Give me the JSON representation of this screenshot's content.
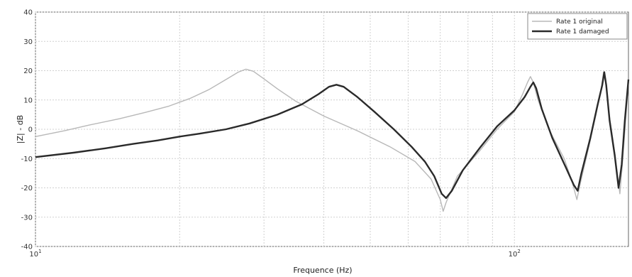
{
  "chart_data": {
    "type": "line",
    "title": "",
    "xlabel": "Frequence (Hz)",
    "ylabel": "|Z| - dB",
    "xscale": "log",
    "xlim": [
      10,
      173
    ],
    "ylim": [
      -40,
      40
    ],
    "grid": true,
    "legend_position": "top-right",
    "x_tick_labels": [
      "10^1",
      "10^2"
    ],
    "y_ticks": [
      -40,
      -30,
      -20,
      -10,
      0,
      10,
      20,
      30,
      40
    ],
    "series": [
      {
        "name": "Rate 1 original",
        "color": "#b8b8b8",
        "points": [
          [
            10,
            -2.5
          ],
          [
            11.5,
            -0.5
          ],
          [
            13,
            1.5
          ],
          [
            15,
            3.6
          ],
          [
            17,
            5.8
          ],
          [
            19,
            7.9
          ],
          [
            21,
            10.5
          ],
          [
            23,
            13.5
          ],
          [
            25,
            17
          ],
          [
            26.5,
            19.5
          ],
          [
            27.5,
            20.5
          ],
          [
            28.5,
            19.8
          ],
          [
            30,
            17.2
          ],
          [
            32,
            13.8
          ],
          [
            35,
            9.5
          ],
          [
            40,
            4.5
          ],
          [
            47,
            -0.5
          ],
          [
            55,
            -6
          ],
          [
            62,
            -11
          ],
          [
            67,
            -17
          ],
          [
            70,
            -24
          ],
          [
            71,
            -28
          ],
          [
            72,
            -25
          ],
          [
            76,
            -16
          ],
          [
            84,
            -8
          ],
          [
            92,
            0
          ],
          [
            100,
            6
          ],
          [
            104,
            12
          ],
          [
            106.5,
            16
          ],
          [
            108,
            18
          ],
          [
            109.5,
            16
          ],
          [
            112,
            10
          ],
          [
            118,
            0
          ],
          [
            127,
            -10
          ],
          [
            132,
            -18
          ],
          [
            135,
            -24
          ],
          [
            137,
            -19
          ],
          [
            143,
            -6
          ],
          [
            148,
            5
          ],
          [
            151.5,
            13
          ],
          [
            153.5,
            19.5
          ],
          [
            155,
            16
          ],
          [
            158,
            4
          ],
          [
            162,
            -8
          ],
          [
            166,
            -22
          ],
          [
            168,
            -12
          ],
          [
            171,
            5
          ],
          [
            173,
            17
          ]
        ]
      },
      {
        "name": "Rate 1 damaged",
        "color": "#2a2a2a",
        "points": [
          [
            10,
            -9.5
          ],
          [
            12,
            -8
          ],
          [
            14,
            -6.5
          ],
          [
            16,
            -5
          ],
          [
            18,
            -3.8
          ],
          [
            20,
            -2.5
          ],
          [
            22,
            -1.5
          ],
          [
            25,
            0
          ],
          [
            28,
            2
          ],
          [
            32,
            5
          ],
          [
            36,
            8.5
          ],
          [
            39,
            12
          ],
          [
            41,
            14.5
          ],
          [
            42.5,
            15.2
          ],
          [
            44,
            14.5
          ],
          [
            47,
            11
          ],
          [
            51,
            6
          ],
          [
            56,
            0
          ],
          [
            61,
            -6
          ],
          [
            65,
            -11
          ],
          [
            68,
            -16
          ],
          [
            70.5,
            -22
          ],
          [
            72,
            -23.5
          ],
          [
            74,
            -21
          ],
          [
            78,
            -14
          ],
          [
            85,
            -6
          ],
          [
            92,
            1
          ],
          [
            100,
            6.5
          ],
          [
            105,
            11
          ],
          [
            108,
            14.5
          ],
          [
            109.5,
            16
          ],
          [
            111,
            14
          ],
          [
            114,
            7
          ],
          [
            120,
            -3
          ],
          [
            128,
            -13
          ],
          [
            133,
            -19
          ],
          [
            135.5,
            -21
          ],
          [
            138,
            -15
          ],
          [
            144,
            -3
          ],
          [
            149,
            8
          ],
          [
            152.5,
            15
          ],
          [
            154,
            19.5
          ],
          [
            155.5,
            15
          ],
          [
            158,
            3
          ],
          [
            162,
            -9
          ],
          [
            165,
            -20
          ],
          [
            167.5,
            -12
          ],
          [
            170,
            3
          ],
          [
            173,
            17
          ]
        ]
      }
    ]
  }
}
